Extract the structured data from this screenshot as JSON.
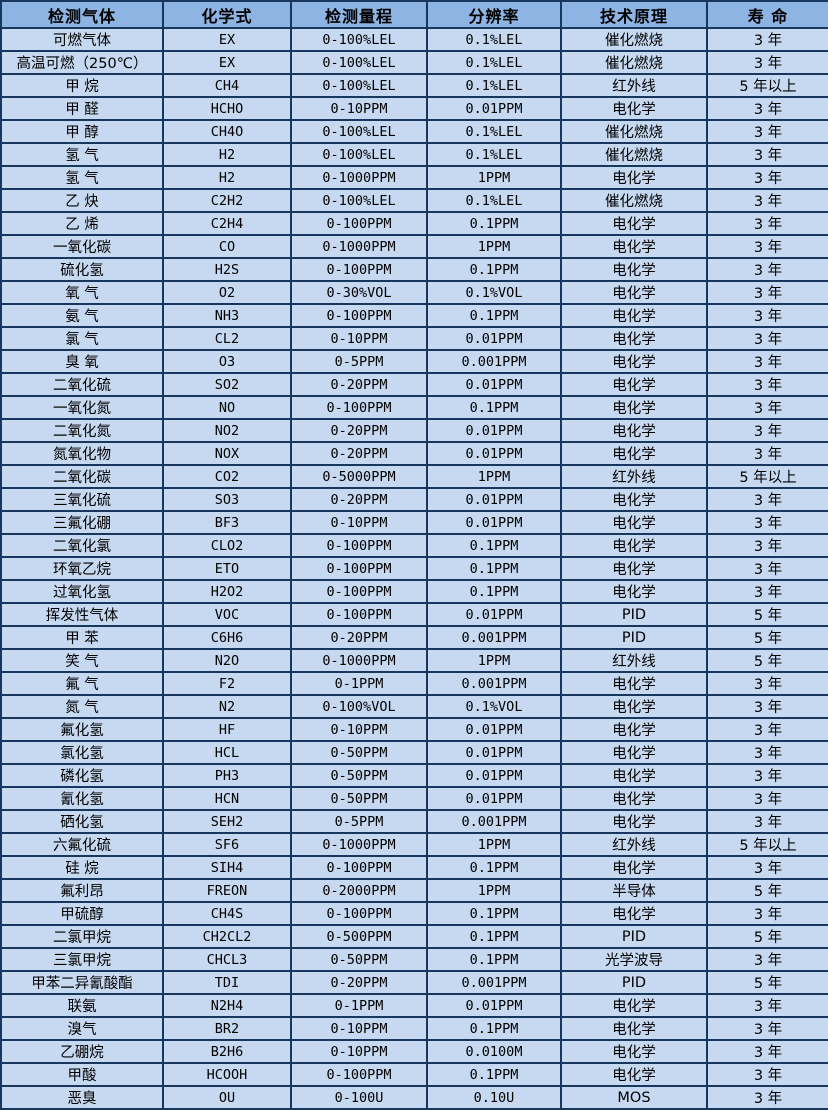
{
  "colors": {
    "header_bg": "#8db4e3",
    "row_bg": "#c6d9f1",
    "border": "#17375e",
    "text": "#000000"
  },
  "table": {
    "headers": [
      "检测气体",
      "化学式",
      "检测量程",
      "分辨率",
      "技术原理",
      "寿 命"
    ],
    "rows": [
      [
        "可燃气体",
        "EX",
        "0-100%LEL",
        "0.1%LEL",
        "催化燃烧",
        "3 年"
      ],
      [
        "高温可燃（250℃）",
        "EX",
        "0-100%LEL",
        "0.1%LEL",
        "催化燃烧",
        "3 年"
      ],
      [
        "甲 烷",
        "CH4",
        "0-100%LEL",
        "0.1%LEL",
        "红外线",
        "5 年以上"
      ],
      [
        "甲 醛",
        "HCHO",
        "0-10PPM",
        "0.01PPM",
        "电化学",
        "3 年"
      ],
      [
        "甲 醇",
        "CH4O",
        "0-100%LEL",
        "0.1%LEL",
        "催化燃烧",
        "3 年"
      ],
      [
        "氢 气",
        "H2",
        "0-100%LEL",
        "0.1%LEL",
        "催化燃烧",
        "3 年"
      ],
      [
        "氢 气",
        "H2",
        "0-1000PPM",
        "1PPM",
        "电化学",
        "3 年"
      ],
      [
        "乙 炔",
        "C2H2",
        "0-100%LEL",
        "0.1%LEL",
        "催化燃烧",
        "3 年"
      ],
      [
        "乙 烯",
        "C2H4",
        "0-100PPM",
        "0.1PPM",
        "电化学",
        "3 年"
      ],
      [
        "一氧化碳",
        "CO",
        "0-1000PPM",
        "1PPM",
        "电化学",
        "3 年"
      ],
      [
        "硫化氢",
        "H2S",
        "0-100PPM",
        "0.1PPM",
        "电化学",
        "3 年"
      ],
      [
        "氧 气",
        "O2",
        "0-30%VOL",
        "0.1%VOL",
        "电化学",
        "3 年"
      ],
      [
        "氨 气",
        "NH3",
        "0-100PPM",
        "0.1PPM",
        "电化学",
        "3 年"
      ],
      [
        "氯 气",
        "CL2",
        "0-10PPM",
        "0.01PPM",
        "电化学",
        "3 年"
      ],
      [
        "臭 氧",
        "O3",
        "0-5PPM",
        "0.001PPM",
        "电化学",
        "3 年"
      ],
      [
        "二氧化硫",
        "SO2",
        "0-20PPM",
        "0.01PPM",
        "电化学",
        "3 年"
      ],
      [
        "一氧化氮",
        "NO",
        "0-100PPM",
        "0.1PPM",
        "电化学",
        "3 年"
      ],
      [
        "二氧化氮",
        "NO2",
        "0-20PPM",
        "0.01PPM",
        "电化学",
        "3 年"
      ],
      [
        "氮氧化物",
        "NOX",
        "0-20PPM",
        "0.01PPM",
        "电化学",
        "3 年"
      ],
      [
        "二氧化碳",
        "CO2",
        "0-5000PPM",
        "1PPM",
        "红外线",
        "5 年以上"
      ],
      [
        "三氧化硫",
        "SO3",
        "0-20PPM",
        "0.01PPM",
        "电化学",
        "3 年"
      ],
      [
        "三氟化硼",
        "BF3",
        "0-10PPM",
        "0.01PPM",
        "电化学",
        "3 年"
      ],
      [
        "二氧化氯",
        "CLO2",
        "0-100PPM",
        "0.1PPM",
        "电化学",
        "3 年"
      ],
      [
        "环氧乙烷",
        "ETO",
        "0-100PPM",
        "0.1PPM",
        "电化学",
        "3 年"
      ],
      [
        "过氧化氢",
        "H2O2",
        "0-100PPM",
        "0.1PPM",
        "电化学",
        "3 年"
      ],
      [
        "挥发性气体",
        "VOC",
        "0-100PPM",
        "0.01PPM",
        "PID",
        "5 年"
      ],
      [
        "甲 苯",
        "C6H6",
        "0-20PPM",
        "0.001PPM",
        "PID",
        "5 年"
      ],
      [
        "笑 气",
        "N2O",
        "0-1000PPM",
        "1PPM",
        "红外线",
        "5 年"
      ],
      [
        "氟 气",
        "F2",
        "0-1PPM",
        "0.001PPM",
        "电化学",
        "3 年"
      ],
      [
        "氮 气",
        "N2",
        "0-100%VOL",
        "0.1%VOL",
        "电化学",
        "3 年"
      ],
      [
        "氟化氢",
        "HF",
        "0-10PPM",
        "0.01PPM",
        "电化学",
        "3 年"
      ],
      [
        "氯化氢",
        "HCL",
        "0-50PPM",
        "0.01PPM",
        "电化学",
        "3 年"
      ],
      [
        "磷化氢",
        "PH3",
        "0-50PPM",
        "0.01PPM",
        "电化学",
        "3 年"
      ],
      [
        "氰化氢",
        "HCN",
        "0-50PPM",
        "0.01PPM",
        "电化学",
        "3 年"
      ],
      [
        "硒化氢",
        "SEH2",
        "0-5PPM",
        "0.001PPM",
        "电化学",
        "3 年"
      ],
      [
        "六氟化硫",
        "SF6",
        "0-1000PPM",
        "1PPM",
        "红外线",
        "5 年以上"
      ],
      [
        "硅 烷",
        "SIH4",
        "0-100PPM",
        "0.1PPM",
        "电化学",
        "3 年"
      ],
      [
        "氟利昂",
        "FREON",
        "0-2000PPM",
        "1PPM",
        "半导体",
        "5 年"
      ],
      [
        "甲硫醇",
        "CH4S",
        "0-100PPM",
        "0.1PPM",
        "电化学",
        "3 年"
      ],
      [
        "二氯甲烷",
        "CH2CL2",
        "0-500PPM",
        "0.1PPM",
        "PID",
        "5 年"
      ],
      [
        "三氯甲烷",
        "CHCL3",
        "0-50PPM",
        "0.1PPM",
        "光学波导",
        "3 年"
      ],
      [
        "甲苯二异氰酸酯",
        "TDI",
        "0-20PPM",
        "0.001PPM",
        "PID",
        "5 年"
      ],
      [
        "联氨",
        "N2H4",
        "0-1PPM",
        "0.01PPM",
        "电化学",
        "3 年"
      ],
      [
        "溴气",
        "BR2",
        "0-10PPM",
        "0.1PPM",
        "电化学",
        "3 年"
      ],
      [
        "乙硼烷",
        "B2H6",
        "0-10PPM",
        "0.0100M",
        "电化学",
        "3 年"
      ],
      [
        "甲酸",
        "HCOOH",
        "0-100PPM",
        "0.1PPM",
        "电化学",
        "3 年"
      ],
      [
        "恶臭",
        "OU",
        "0-100U",
        "0.10U",
        "MOS",
        "3 年"
      ]
    ]
  }
}
